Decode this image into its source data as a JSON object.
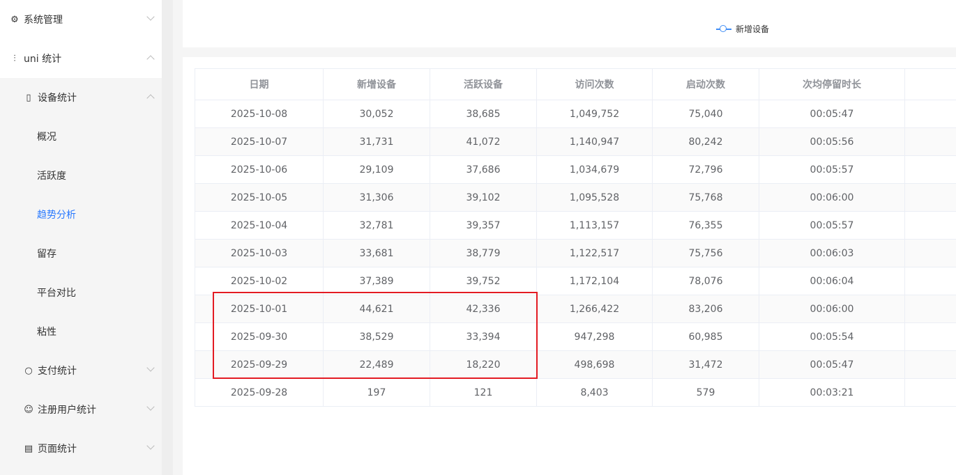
{
  "sidebar": {
    "items": [
      {
        "label": "系统管理",
        "icon": "gear-icon",
        "expanded": false
      },
      {
        "label": "uni 统计",
        "icon": "chart-icon",
        "expanded": true
      },
      {
        "label": "设备统计",
        "icon": "device-icon",
        "expanded": true
      },
      {
        "label": "概况"
      },
      {
        "label": "活跃度"
      },
      {
        "label": "趋势分析",
        "active": true
      },
      {
        "label": "留存"
      },
      {
        "label": "平台对比"
      },
      {
        "label": "粘性"
      },
      {
        "label": "支付统计",
        "icon": "circle-icon",
        "expanded": false
      },
      {
        "label": "注册用户统计",
        "icon": "user-icon",
        "expanded": false
      },
      {
        "label": "页面统计",
        "icon": "page-icon",
        "expanded": false
      }
    ]
  },
  "chart": {
    "legend": "新增设备",
    "legend_color": "#3f8df6"
  },
  "table": {
    "headers": [
      "日期",
      "新增设备",
      "活跃设备",
      "访问次数",
      "启动次数",
      "次均停留时长",
      ""
    ],
    "rows": [
      [
        "2025-10-08",
        "30,052",
        "38,685",
        "1,049,752",
        "75,040",
        "00:05:47",
        ""
      ],
      [
        "2025-10-07",
        "31,731",
        "41,072",
        "1,140,947",
        "80,242",
        "00:05:56",
        ""
      ],
      [
        "2025-10-06",
        "29,109",
        "37,686",
        "1,034,679",
        "72,796",
        "00:05:57",
        ""
      ],
      [
        "2025-10-05",
        "31,306",
        "39,102",
        "1,095,528",
        "75,768",
        "00:06:00",
        ""
      ],
      [
        "2025-10-04",
        "32,781",
        "39,357",
        "1,113,157",
        "76,355",
        "00:05:57",
        ""
      ],
      [
        "2025-10-03",
        "33,681",
        "38,779",
        "1,122,517",
        "75,756",
        "00:06:03",
        ""
      ],
      [
        "2025-10-02",
        "37,389",
        "39,752",
        "1,172,104",
        "78,076",
        "00:06:04",
        ""
      ],
      [
        "2025-10-01",
        "44,621",
        "42,336",
        "1,266,422",
        "83,206",
        "00:06:00",
        ""
      ],
      [
        "2025-09-30",
        "38,529",
        "33,394",
        "947,298",
        "60,985",
        "00:05:54",
        ""
      ],
      [
        "2025-09-29",
        "22,489",
        "18,220",
        "498,698",
        "31,472",
        "00:05:47",
        ""
      ],
      [
        "2025-09-28",
        "197",
        "121",
        "8,403",
        "579",
        "00:03:21",
        ""
      ]
    ]
  },
  "highlight_color": "#e31b23",
  "accent": "#2979ff"
}
